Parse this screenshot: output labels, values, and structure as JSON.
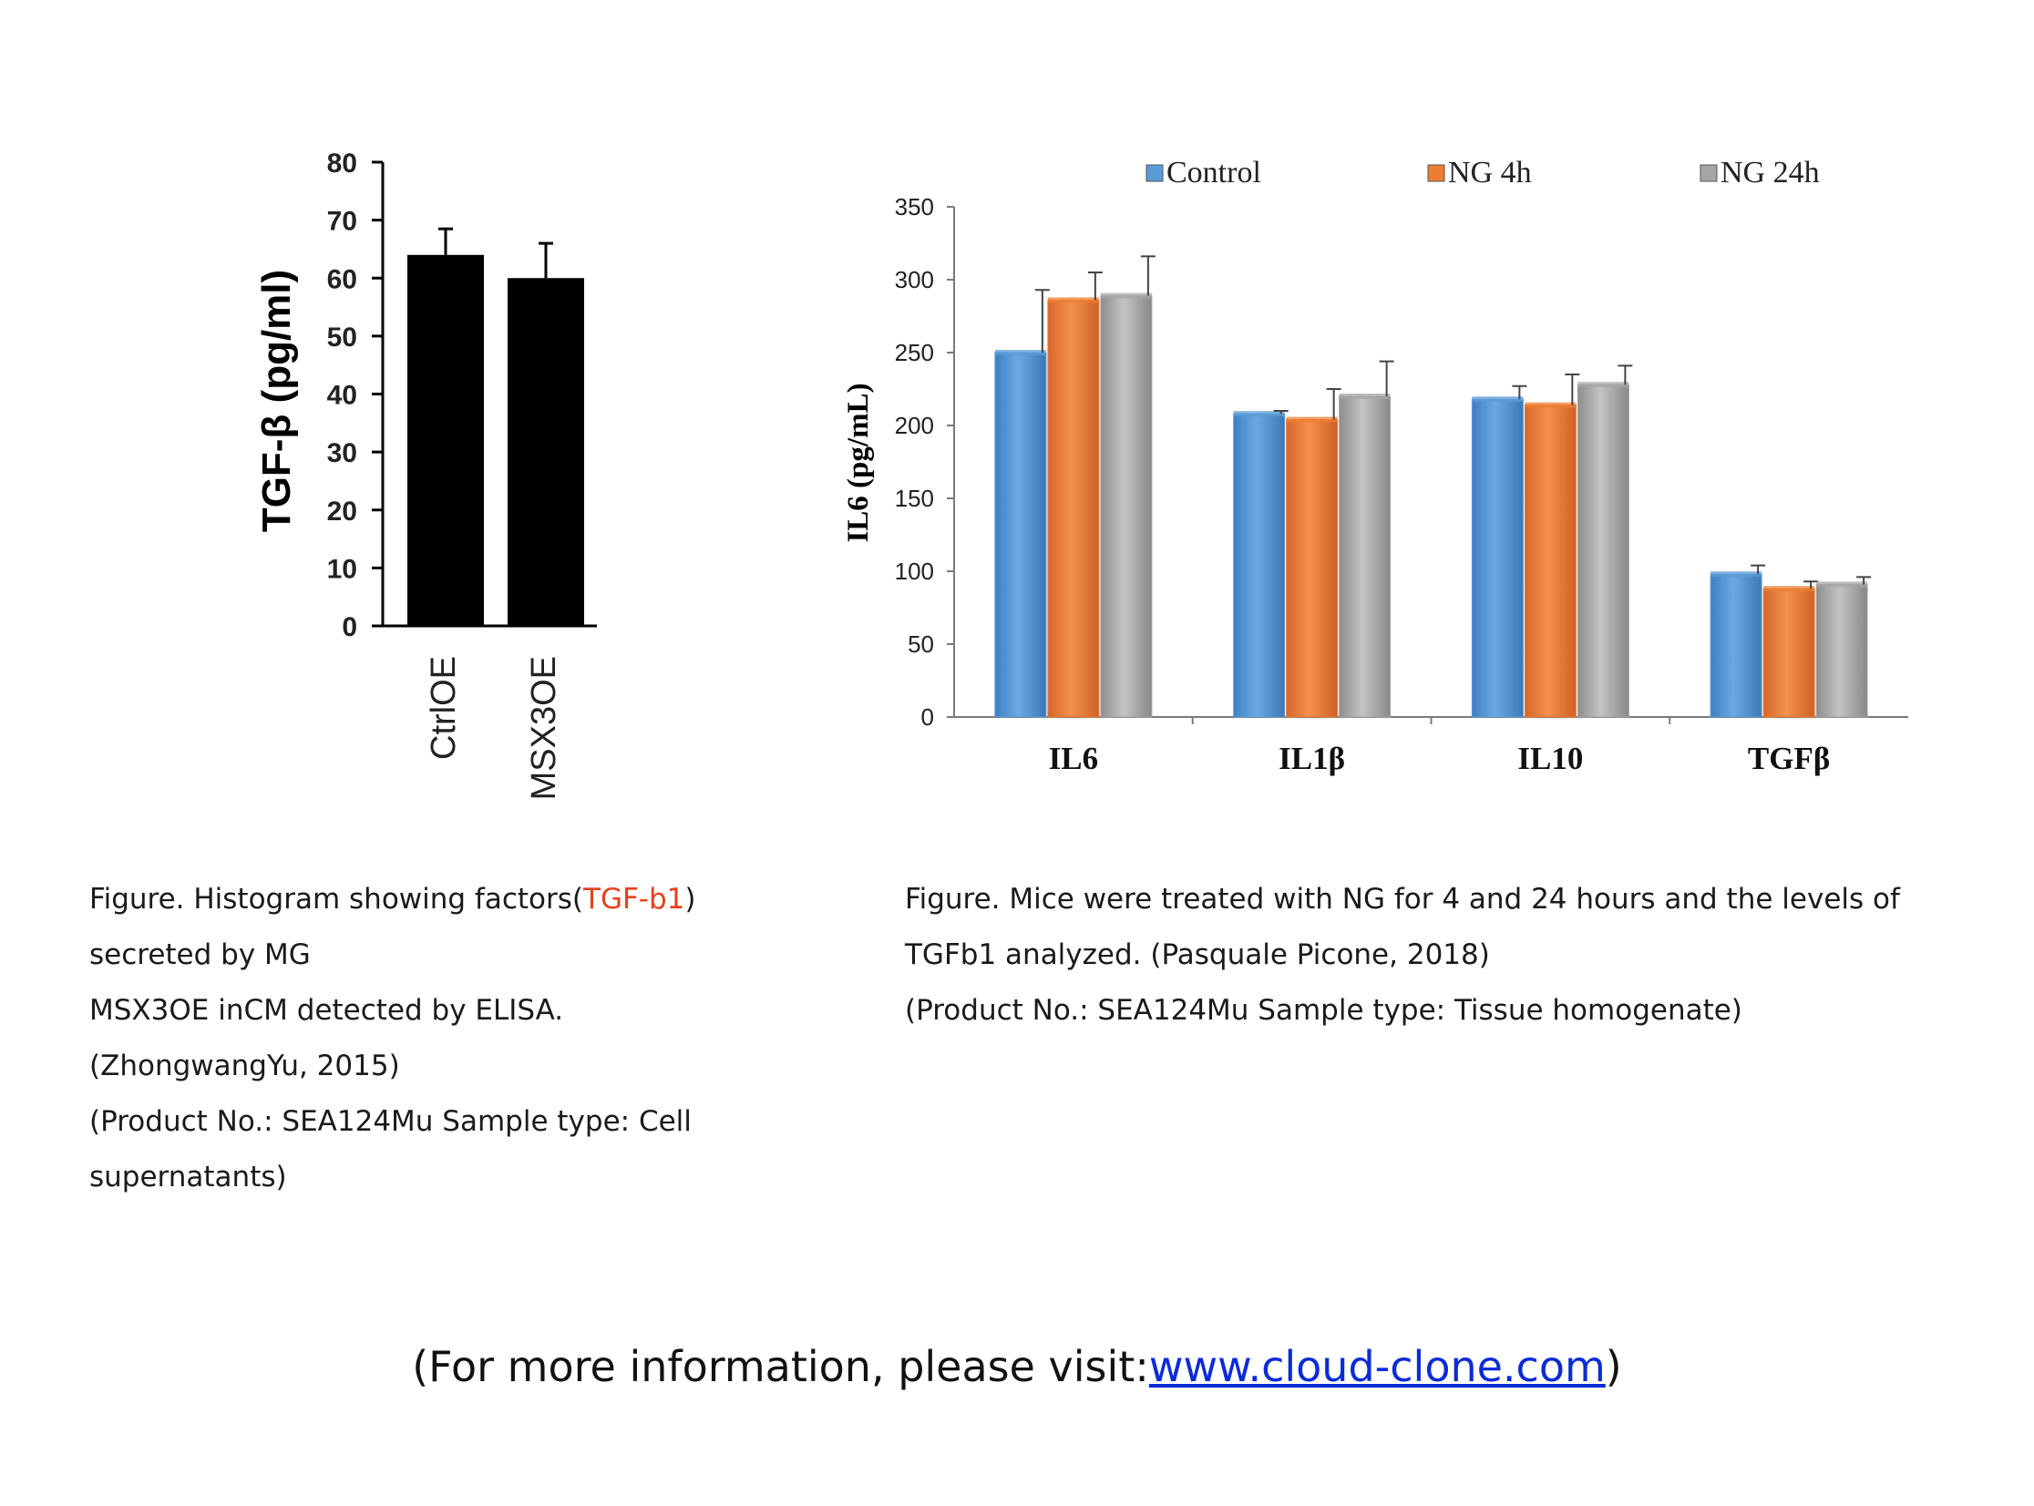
{
  "chart_data": [
    {
      "type": "bar",
      "ylabel": "TGF-β (pg/ml)",
      "categories": [
        "CtrlOE",
        "MSX3OE"
      ],
      "values": [
        64,
        60
      ],
      "errors": [
        4.5,
        6
      ],
      "ylim": [
        0,
        80
      ],
      "yticks": [
        0,
        10,
        20,
        30,
        40,
        50,
        60,
        70,
        80
      ],
      "bar_color": "#000000"
    },
    {
      "type": "bar",
      "ylabel": "IL6 (pg/mL)",
      "categories": [
        "IL6",
        "IL1β",
        "IL10",
        "TGFβ"
      ],
      "ylim": [
        0,
        350
      ],
      "yticks": [
        0,
        50,
        100,
        150,
        200,
        250,
        300,
        350
      ],
      "legend_position": "top",
      "series": [
        {
          "name": "Control",
          "color": "#5b9bd5",
          "values": [
            250,
            208,
            218,
            98
          ],
          "errors": [
            43,
            2,
            9,
            6
          ]
        },
        {
          "name": "NG 4h",
          "color": "#ed7d31",
          "values": [
            286,
            204,
            214,
            88
          ],
          "errors": [
            19,
            21,
            21,
            5
          ]
        },
        {
          "name": "NG 24h",
          "color": "#a5a5a5",
          "values": [
            289,
            220,
            228,
            91
          ],
          "errors": [
            27,
            24,
            13,
            5
          ]
        }
      ]
    }
  ],
  "captions": {
    "left": {
      "line1_pre": "Figure. Histogram showing factors(",
      "line1_accent": "TGF-b1",
      "line1_post": ")",
      "line2": "secreted by MG",
      "line3": "MSX3OE inCM detected by ELISA.",
      "line4": "(ZhongwangYu, 2015)",
      "line5": "(Product No.: SEA124Mu Sample type: Cell",
      "line6": "supernatants)"
    },
    "right": {
      "line1": "Figure. Mice were treated with NG for 4 and 24 hours and the levels of",
      "line2": "TGFb1 analyzed. (Pasquale Picone, 2018)",
      "line3": "(Product No.: SEA124Mu Sample type: Tissue homogenate)"
    }
  },
  "footer": {
    "prefix": "(For more information, please visit:",
    "link_text": "www.cloud-clone.com",
    "suffix": ")"
  }
}
